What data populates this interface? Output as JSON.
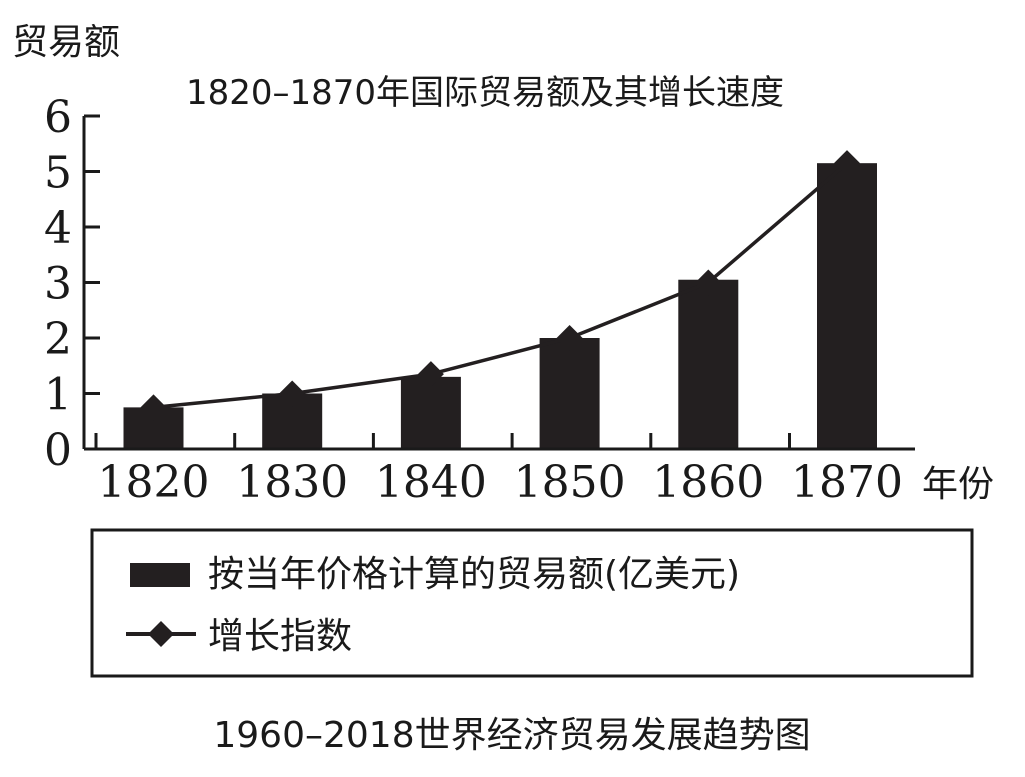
{
  "chart_data": {
    "type": "bar",
    "title": "1820–1870年国际贸易额及其增长速度",
    "ylabel": "贸易额",
    "xlabel": "年份",
    "categories": [
      "1820",
      "1830",
      "1840",
      "1850",
      "1860",
      "1870"
    ],
    "ylim": [
      0,
      6
    ],
    "yticks": [
      "0",
      "1",
      "2",
      "3",
      "4",
      "5",
      "6"
    ],
    "grid": false,
    "series": [
      {
        "name": "按当年价格计算的贸易额(亿美元)",
        "type": "bar",
        "values": [
          0.75,
          1.0,
          1.3,
          2.0,
          3.05,
          5.15
        ]
      },
      {
        "name": "增长指数",
        "type": "line",
        "marker": "diamond",
        "values": [
          0.75,
          1.0,
          1.35,
          2.0,
          3.0,
          5.15
        ]
      }
    ],
    "bar_color": "#231f20",
    "line_color": "#231f20"
  },
  "caption": "1960–2018世界经济贸易发展趋势图"
}
